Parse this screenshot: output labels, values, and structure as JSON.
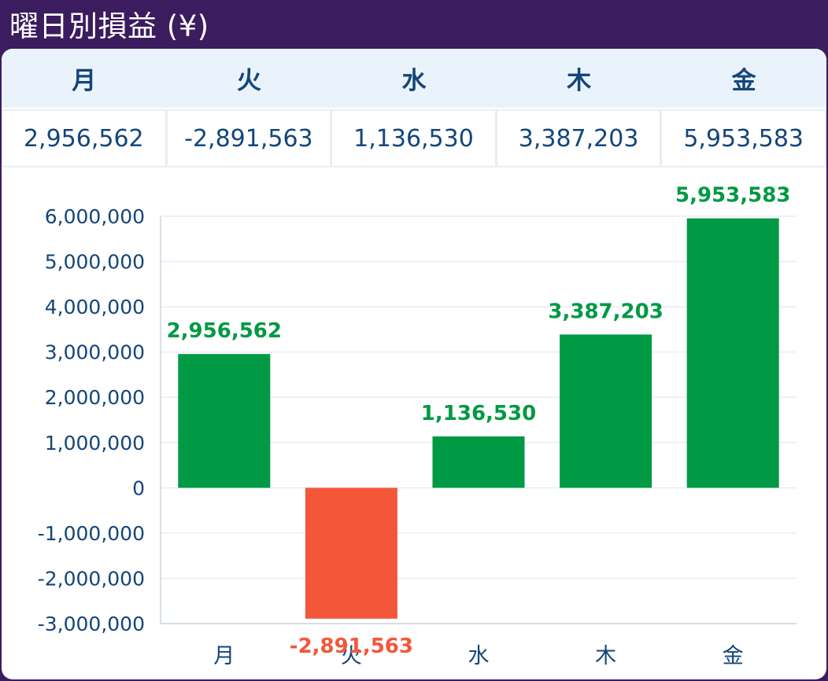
{
  "header": {
    "title": "曜日別損益 (¥)"
  },
  "table": {
    "headers": [
      "月",
      "火",
      "水",
      "木",
      "金"
    ],
    "values": [
      "2,956,562",
      "-2,891,563",
      "1,136,530",
      "3,387,203",
      "5,953,583"
    ]
  },
  "colors": {
    "background": "#3b1c5e",
    "positive": "#009944",
    "negative": "#f4563a",
    "text": "#13467a",
    "grid": "#e6edf2"
  },
  "chart_data": {
    "type": "bar",
    "categories": [
      "月",
      "火",
      "水",
      "木",
      "金"
    ],
    "values": [
      2956562,
      -2891563,
      1136530,
      3387203,
      5953583
    ],
    "data_labels": [
      "2,956,562",
      "-2,891,563",
      "1,136,530",
      "3,387,203",
      "5,953,583"
    ],
    "yticks": [
      -3000000,
      -2000000,
      -1000000,
      0,
      1000000,
      2000000,
      3000000,
      4000000,
      5000000,
      6000000
    ],
    "ytick_labels": [
      "-3,000,000",
      "-2,000,000",
      "-1,000,000",
      "0",
      "1,000,000",
      "2,000,000",
      "3,000,000",
      "4,000,000",
      "5,000,000",
      "6,000,000"
    ],
    "ylim": [
      -3000000,
      6000000
    ],
    "grid": true,
    "legend": "none"
  }
}
